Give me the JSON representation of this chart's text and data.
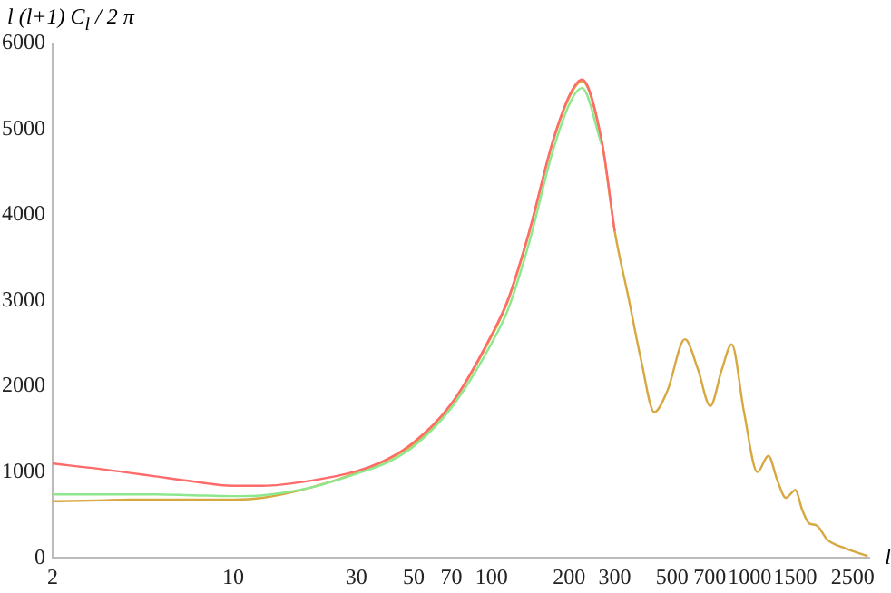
{
  "chart_data": {
    "type": "line",
    "xlabel": "l",
    "ylabel": "l (l+1) C$_{l}$ / 2 π",
    "log": "x",
    "grid": false,
    "legend": false,
    "marker": "none",
    "line_style": "solid",
    "xlim": [
      2,
      2900
    ],
    "xticks": [
      2,
      10,
      30,
      50,
      70,
      100,
      200,
      300,
      500,
      700,
      1000,
      1500,
      2500
    ],
    "ylim": [
      0,
      6000
    ],
    "yticks": [
      0,
      1000,
      2000,
      3000,
      4000,
      5000,
      6000
    ],
    "x": [
      2,
      3,
      4,
      5,
      7,
      10,
      13,
      20,
      30,
      40,
      50,
      70,
      100,
      116,
      140,
      173,
      203,
      224,
      267,
      300,
      340,
      380,
      427,
      480,
      561,
      630,
      703,
      780,
      851,
      950,
      1070,
      1180,
      1280,
      1380,
      1500,
      1600,
      1700,
      1810,
      2000,
      2350,
      2860
    ],
    "series": [
      {
        "color": "#ff6b6b",
        "values": [
          1100,
          1040,
          990,
          950,
          890,
          840,
          840,
          900,
          1010,
          1160,
          1350,
          1800,
          2600,
          3020,
          3810,
          4870,
          5430,
          5580,
          4870,
          3810,
          null,
          null,
          null,
          null,
          null,
          null,
          null,
          null,
          null,
          null,
          null,
          null,
          null,
          null,
          null,
          null,
          null,
          null,
          null,
          null,
          null
        ]
      },
      {
        "color": "#8de88d",
        "values": [
          740,
          740,
          740,
          740,
          730,
          720,
          730,
          820,
          980,
          1120,
          1300,
          1750,
          2500,
          2900,
          3680,
          4750,
          5330,
          5480,
          4820,
          null,
          null,
          null,
          null,
          null,
          null,
          null,
          null,
          null,
          null,
          null,
          null,
          null,
          null,
          null,
          null,
          null,
          null,
          null,
          null,
          null,
          null
        ]
      },
      {
        "color": "#d8a840",
        "values": [
          660,
          670,
          680,
          680,
          680,
          680,
          700,
          820,
          990,
          1150,
          1330,
          1790,
          2580,
          3000,
          3790,
          4850,
          5410,
          5560,
          4860,
          3810,
          3020,
          2300,
          1700,
          1950,
          2550,
          2200,
          1770,
          2200,
          2490,
          1700,
          1000,
          1190,
          900,
          700,
          790,
          550,
          400,
          380,
          210,
          110,
          20
        ]
      }
    ]
  }
}
